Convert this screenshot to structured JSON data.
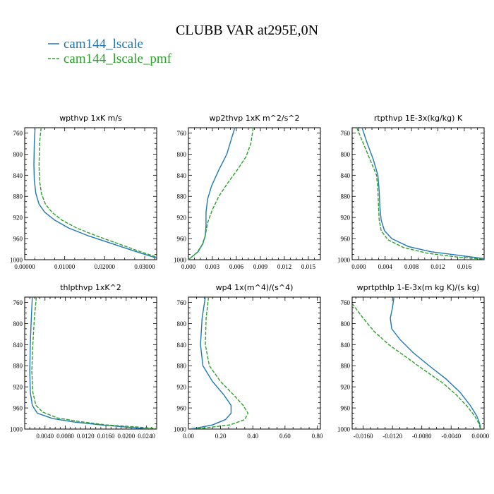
{
  "figure": {
    "title": "CLUBB VAR at295E,0N"
  },
  "legend": {
    "placement": "top-left",
    "entries": [
      {
        "label": "cam144_lscale",
        "color": "#1f77b4",
        "dash": "solid"
      },
      {
        "label": "cam144_lscale_pmf",
        "color": "#2ca02c",
        "dash": "dashed"
      }
    ]
  },
  "chart_data": [
    {
      "type": "line",
      "title": "wpthvp   1xK m/s",
      "xlim": [
        0,
        0.033
      ],
      "ylim": [
        1000,
        750
      ],
      "xticks": [
        0,
        0.01,
        0.02,
        0.03
      ],
      "xtick_labels": [
        "0.00000",
        "0.01000",
        "0.02000",
        "0.03000"
      ],
      "yticks": [
        760,
        800,
        840,
        880,
        920,
        960,
        1000
      ],
      "ytick_labels": [
        "760",
        "800",
        "840",
        "880",
        "920",
        "960",
        "1000"
      ],
      "series": [
        {
          "name": "cam144_lscale",
          "color": "#1f77b4",
          "dash": "solid",
          "points": [
            [
              0.0026,
              750
            ],
            [
              0.0024,
              780
            ],
            [
              0.0023,
              820
            ],
            [
              0.0024,
              850
            ],
            [
              0.0028,
              875
            ],
            [
              0.0036,
              895
            ],
            [
              0.005,
              910
            ],
            [
              0.0075,
              925
            ],
            [
              0.011,
              940
            ],
            [
              0.016,
              955
            ],
            [
              0.022,
              970
            ],
            [
              0.028,
              985
            ],
            [
              0.033,
              997
            ]
          ]
        },
        {
          "name": "cam144_lscale_pmf",
          "color": "#2ca02c",
          "dash": "dashed",
          "points": [
            [
              0.0041,
              750
            ],
            [
              0.0037,
              780
            ],
            [
              0.0036,
              820
            ],
            [
              0.0037,
              850
            ],
            [
              0.0042,
              875
            ],
            [
              0.0052,
              895
            ],
            [
              0.0068,
              910
            ],
            [
              0.0093,
              925
            ],
            [
              0.013,
              940
            ],
            [
              0.018,
              955
            ],
            [
              0.0235,
              970
            ],
            [
              0.029,
              985
            ],
            [
              0.033,
              995
            ]
          ]
        }
      ]
    },
    {
      "type": "line",
      "title": "wp2thvp   1xK m^2/s^2",
      "xlim": [
        0,
        0.0165
      ],
      "ylim": [
        1000,
        750
      ],
      "xticks": [
        0,
        0.003,
        0.006,
        0.009,
        0.012,
        0.015
      ],
      "xtick_labels": [
        "0.000",
        "0.003",
        "0.006",
        "0.009",
        "0.012",
        "0.015"
      ],
      "yticks": [
        760,
        800,
        840,
        880,
        920,
        960,
        1000
      ],
      "ytick_labels": [
        "760",
        "800",
        "840",
        "880",
        "920",
        "960",
        "1000"
      ],
      "series": [
        {
          "name": "cam144_lscale",
          "color": "#1f77b4",
          "dash": "solid",
          "points": [
            [
              0.0058,
              750
            ],
            [
              0.0054,
              770
            ],
            [
              0.0048,
              800
            ],
            [
              0.0038,
              830
            ],
            [
              0.0029,
              860
            ],
            [
              0.0024,
              885
            ],
            [
              0.0022,
              910
            ],
            [
              0.0022,
              935
            ],
            [
              0.0021,
              955
            ],
            [
              0.0018,
              970
            ],
            [
              0.0012,
              985
            ],
            [
              0.0004,
              995
            ],
            [
              0,
              1000
            ]
          ]
        },
        {
          "name": "cam144_lscale_pmf",
          "color": "#2ca02c",
          "dash": "dashed",
          "points": [
            [
              0.0081,
              750
            ],
            [
              0.0078,
              780
            ],
            [
              0.0072,
              805
            ],
            [
              0.0061,
              830
            ],
            [
              0.0049,
              855
            ],
            [
              0.0038,
              880
            ],
            [
              0.003,
              905
            ],
            [
              0.0024,
              930
            ],
            [
              0.0021,
              955
            ],
            [
              0.0017,
              972
            ],
            [
              0.0011,
              986
            ],
            [
              0.0004,
              995
            ],
            [
              0,
              1000
            ]
          ]
        }
      ]
    },
    {
      "type": "line",
      "title": "rtpthvp   1E-3x(kg/kg) K",
      "xlim": [
        -0.001,
        0.019
      ],
      "ylim": [
        1000,
        750
      ],
      "xticks": [
        0,
        0.004,
        0.008,
        0.012,
        0.016
      ],
      "xtick_labels": [
        "0.000",
        "0.004",
        "0.008",
        "0.012",
        "0.016"
      ],
      "yticks": [
        760,
        800,
        840,
        880,
        920,
        960,
        1000
      ],
      "ytick_labels": [
        "760",
        "800",
        "840",
        "880",
        "920",
        "960",
        "1000"
      ],
      "series": [
        {
          "name": "cam144_lscale",
          "color": "#1f77b4",
          "dash": "solid",
          "points": [
            [
              0.0005,
              750
            ],
            [
              0.0013,
              780
            ],
            [
              0.0022,
              810
            ],
            [
              0.0029,
              840
            ],
            [
              0.0031,
              870
            ],
            [
              0.0032,
              900
            ],
            [
              0.0034,
              925
            ],
            [
              0.0039,
              945
            ],
            [
              0.005,
              960
            ],
            [
              0.0075,
              975
            ],
            [
              0.011,
              985
            ],
            [
              0.016,
              993
            ],
            [
              0.019,
              998
            ]
          ]
        },
        {
          "name": "cam144_lscale_pmf",
          "color": "#2ca02c",
          "dash": "dashed",
          "points": [
            [
              -0.0003,
              750
            ],
            [
              0.0007,
              780
            ],
            [
              0.0017,
              810
            ],
            [
              0.0027,
              840
            ],
            [
              0.0029,
              870
            ],
            [
              0.003,
              900
            ],
            [
              0.0031,
              925
            ],
            [
              0.0034,
              945
            ],
            [
              0.0044,
              962
            ],
            [
              0.0068,
              977
            ],
            [
              0.0105,
              988
            ],
            [
              0.015,
              995
            ],
            [
              0.019,
              999
            ]
          ]
        }
      ]
    },
    {
      "type": "line",
      "title": "thlpthvp   1xK^2",
      "xlim": [
        0,
        0.026
      ],
      "ylim": [
        1000,
        750
      ],
      "xticks": [
        0.004,
        0.008,
        0.012,
        0.016,
        0.02,
        0.024
      ],
      "xtick_labels": [
        "0.0040",
        "0.0080",
        "0.0120",
        "0.0160",
        "0.0200",
        "0.0240"
      ],
      "yticks": [
        760,
        800,
        840,
        880,
        920,
        960,
        1000
      ],
      "ytick_labels": [
        "760",
        "800",
        "840",
        "880",
        "920",
        "960",
        "1000"
      ],
      "series": [
        {
          "name": "cam144_lscale",
          "color": "#1f77b4",
          "dash": "solid",
          "points": [
            [
              0.0015,
              750
            ],
            [
              0.0013,
              790
            ],
            [
              0.0011,
              840
            ],
            [
              0.001,
              890
            ],
            [
              0.0011,
              930
            ],
            [
              0.0015,
              955
            ],
            [
              0.0025,
              970
            ],
            [
              0.0055,
              980
            ],
            [
              0.01,
              987
            ],
            [
              0.015,
              992
            ],
            [
              0.021,
              997
            ],
            [
              0.025,
              1000
            ]
          ]
        },
        {
          "name": "cam144_lscale_pmf",
          "color": "#2ca02c",
          "dash": "dashed",
          "points": [
            [
              0.0023,
              750
            ],
            [
              0.0019,
              790
            ],
            [
              0.0016,
              840
            ],
            [
              0.0014,
              890
            ],
            [
              0.0016,
              930
            ],
            [
              0.0022,
              955
            ],
            [
              0.0036,
              968
            ],
            [
              0.0065,
              979
            ],
            [
              0.011,
              986
            ],
            [
              0.016,
              992
            ],
            [
              0.022,
              996
            ],
            [
              0.026,
              999
            ]
          ]
        }
      ]
    },
    {
      "type": "line",
      "title": "wp4   1x(m^4)/(s^4)",
      "xlim": [
        0,
        0.82
      ],
      "ylim": [
        1000,
        750
      ],
      "xticks": [
        0,
        0.2,
        0.4,
        0.6,
        0.8
      ],
      "xtick_labels": [
        "0.00",
        "0.20",
        "0.40",
        "0.60",
        "0.80"
      ],
      "yticks": [
        760,
        800,
        840,
        880,
        920,
        960,
        1000
      ],
      "ytick_labels": [
        "760",
        "800",
        "840",
        "880",
        "920",
        "960",
        "1000"
      ],
      "series": [
        {
          "name": "cam144_lscale",
          "color": "#1f77b4",
          "dash": "solid",
          "points": [
            [
              0.105,
              750
            ],
            [
              0.085,
              790
            ],
            [
              0.075,
              840
            ],
            [
              0.09,
              880
            ],
            [
              0.15,
              910
            ],
            [
              0.22,
              935
            ],
            [
              0.265,
              955
            ],
            [
              0.265,
              970
            ],
            [
              0.23,
              982
            ],
            [
              0.15,
              992
            ],
            [
              0.05,
              998
            ],
            [
              0,
              1000
            ]
          ]
        },
        {
          "name": "cam144_lscale_pmf",
          "color": "#2ca02c",
          "dash": "dashed",
          "points": [
            [
              0.125,
              750
            ],
            [
              0.11,
              790
            ],
            [
              0.105,
              840
            ],
            [
              0.13,
              880
            ],
            [
              0.2,
              910
            ],
            [
              0.28,
              935
            ],
            [
              0.34,
              955
            ],
            [
              0.37,
              970
            ],
            [
              0.35,
              982
            ],
            [
              0.26,
              992
            ],
            [
              0.1,
              998
            ],
            [
              0,
              1000
            ]
          ]
        }
      ]
    },
    {
      "type": "line",
      "title": "wprtpthlp   1-E-3x(m kg K)/(s kg)",
      "xlim": [
        -0.0175,
        0.0005
      ],
      "ylim": [
        1000,
        750
      ],
      "xticks": [
        -0.016,
        -0.012,
        -0.008,
        -0.004,
        0
      ],
      "xtick_labels": [
        "-0.0160",
        "-0.0120",
        "-0.0080",
        "-0.0040",
        "0.0000"
      ],
      "yticks": [
        760,
        800,
        840,
        880,
        920,
        960,
        1000
      ],
      "ytick_labels": [
        "760",
        "800",
        "840",
        "880",
        "920",
        "960",
        "1000"
      ],
      "series": [
        {
          "name": "cam144_lscale",
          "color": "#1f77b4",
          "dash": "solid",
          "points": [
            [
              -0.0118,
              750
            ],
            [
              -0.012,
              770
            ],
            [
              -0.0123,
              790
            ],
            [
              -0.0121,
              810
            ],
            [
              -0.011,
              830
            ],
            [
              -0.0092,
              855
            ],
            [
              -0.007,
              880
            ],
            [
              -0.0047,
              905
            ],
            [
              -0.0028,
              930
            ],
            [
              -0.0014,
              955
            ],
            [
              -0.0005,
              975
            ],
            [
              -0.0001,
              990
            ],
            [
              0,
              1000
            ]
          ]
        },
        {
          "name": "cam144_lscale_pmf",
          "color": "#2ca02c",
          "dash": "dashed",
          "points": [
            [
              -0.0175,
              762
            ],
            [
              -0.016,
              790
            ],
            [
              -0.0145,
              815
            ],
            [
              -0.0125,
              840
            ],
            [
              -0.01,
              865
            ],
            [
              -0.0075,
              890
            ],
            [
              -0.0052,
              912
            ],
            [
              -0.0033,
              935
            ],
            [
              -0.0018,
              957
            ],
            [
              -0.0008,
              975
            ],
            [
              -0.0002,
              990
            ],
            [
              0,
              1000
            ]
          ]
        }
      ]
    }
  ]
}
